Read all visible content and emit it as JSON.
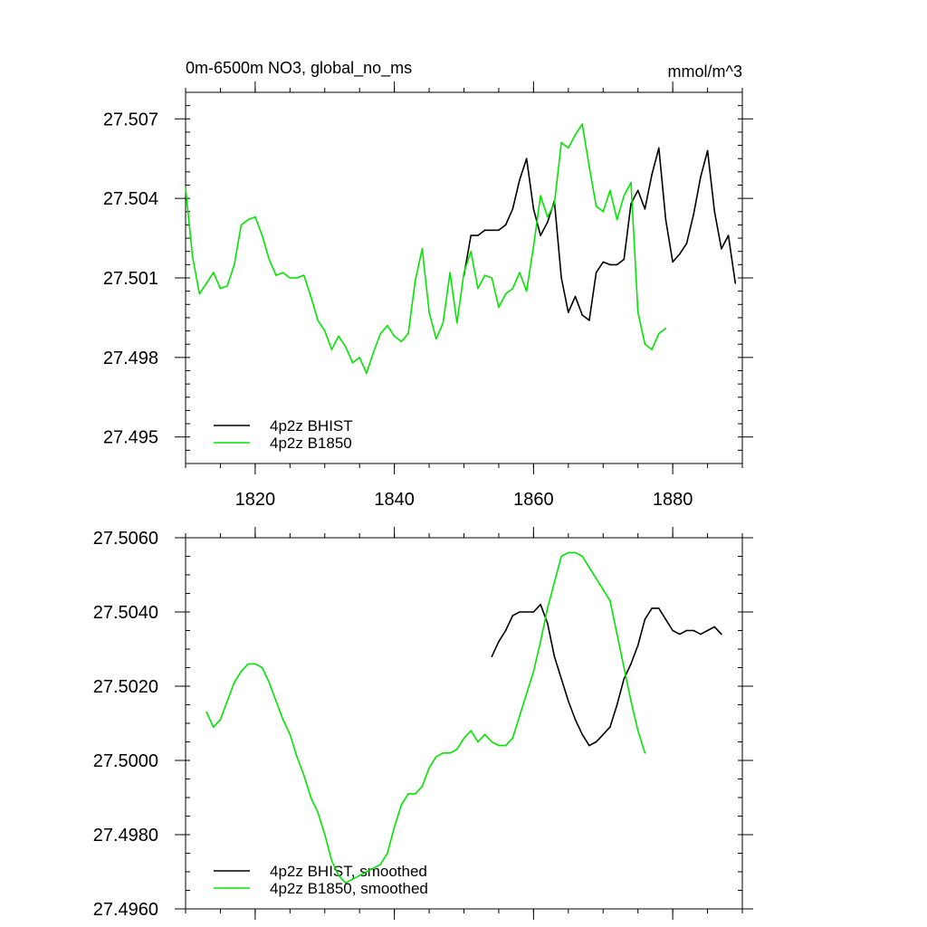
{
  "chart_data": [
    {
      "type": "line",
      "title": "0m-6500m NO3, global_no_ms",
      "units": "mmol/m^3",
      "xlim": [
        1810,
        1890
      ],
      "ylim": [
        27.494,
        27.508
      ],
      "y_tick_values": [
        27.495,
        27.498,
        27.501,
        27.504,
        27.507
      ],
      "y_tick_labels": [
        "27.495",
        "27.498",
        "27.501",
        "27.504",
        "27.507"
      ],
      "x_tick_values": [
        1820,
        1840,
        1860,
        1880
      ],
      "x_tick_labels": [
        "1820",
        "1840",
        "1860",
        "1880"
      ],
      "grid": false,
      "legend_position": "bottom-left",
      "series": [
        {
          "name": "4p2z BHIST",
          "color": "#000000",
          "x": [
            1850,
            1851,
            1852,
            1853,
            1854,
            1855,
            1856,
            1857,
            1858,
            1859,
            1860,
            1861,
            1862,
            1863,
            1864,
            1865,
            1866,
            1867,
            1868,
            1869,
            1870,
            1871,
            1872,
            1873,
            1874,
            1875,
            1876,
            1877,
            1878,
            1879,
            1880,
            1881,
            1882,
            1883,
            1884,
            1885,
            1886,
            1887,
            1888,
            1889
          ],
          "y": [
            27.5011,
            27.5026,
            27.5026,
            27.5028,
            27.5028,
            27.5028,
            27.503,
            27.5036,
            27.5047,
            27.5055,
            27.5036,
            27.5026,
            27.5031,
            27.5039,
            27.501,
            27.4997,
            27.5003,
            27.4996,
            27.4994,
            27.5012,
            27.5016,
            27.5015,
            27.5015,
            27.5017,
            27.5038,
            27.5043,
            27.5036,
            27.5049,
            27.5059,
            27.5032,
            27.5016,
            27.5019,
            27.5023,
            27.5034,
            27.5048,
            27.5058,
            27.5035,
            27.5021,
            27.5026,
            27.5008
          ]
        },
        {
          "name": "4p2z B1850",
          "color": "#00e600",
          "x": [
            1810,
            1811,
            1812,
            1813,
            1814,
            1815,
            1816,
            1817,
            1818,
            1819,
            1820,
            1821,
            1822,
            1823,
            1824,
            1825,
            1826,
            1827,
            1828,
            1829,
            1830,
            1831,
            1832,
            1833,
            1834,
            1835,
            1836,
            1837,
            1838,
            1839,
            1840,
            1841,
            1842,
            1843,
            1844,
            1845,
            1846,
            1847,
            1848,
            1849,
            1850,
            1851,
            1852,
            1853,
            1854,
            1855,
            1856,
            1857,
            1858,
            1859,
            1860,
            1861,
            1862,
            1863,
            1864,
            1865,
            1866,
            1867,
            1868,
            1869,
            1870,
            1871,
            1872,
            1873,
            1874,
            1875,
            1876,
            1877,
            1878,
            1879
          ],
          "y": [
            27.5044,
            27.5018,
            27.5004,
            27.5008,
            27.5012,
            27.5006,
            27.5007,
            27.5015,
            27.503,
            27.5032,
            27.5033,
            27.5026,
            27.5017,
            27.5011,
            27.5012,
            27.501,
            27.501,
            27.5011,
            27.5003,
            27.4994,
            27.499,
            27.4983,
            27.4988,
            27.4984,
            27.4978,
            27.498,
            27.4974,
            27.4982,
            27.4989,
            27.4992,
            27.4988,
            27.4986,
            27.4989,
            27.5009,
            27.5021,
            27.4997,
            27.4987,
            27.4993,
            27.5012,
            27.4993,
            27.5012,
            27.502,
            27.5006,
            27.5011,
            27.501,
            27.4999,
            27.5004,
            27.5006,
            27.5012,
            27.5005,
            27.5022,
            27.5041,
            27.5033,
            27.5038,
            27.5061,
            27.5059,
            27.5064,
            27.5068,
            27.5052,
            27.5037,
            27.5035,
            27.5043,
            27.5032,
            27.5041,
            27.5046,
            27.4997,
            27.4985,
            27.4983,
            27.4989,
            27.4991
          ]
        }
      ]
    },
    {
      "type": "line",
      "title": "",
      "xlim": [
        1810,
        1890
      ],
      "ylim": [
        27.496,
        27.506
      ],
      "y_tick_values": [
        27.496,
        27.498,
        27.5,
        27.502,
        27.504,
        27.506
      ],
      "y_tick_labels": [
        "27.4960",
        "27.4980",
        "27.5000",
        "27.5020",
        "27.5040",
        "27.5060"
      ],
      "x_tick_values": [
        1820,
        1840,
        1860,
        1880
      ],
      "x_tick_labels": [
        "",
        "",
        "",
        ""
      ],
      "grid": false,
      "legend_position": "bottom-left",
      "series": [
        {
          "name": "4p2z BHIST, smoothed",
          "color": "#000000",
          "x": [
            1854,
            1855,
            1856,
            1857,
            1858,
            1859,
            1860,
            1861,
            1862,
            1863,
            1864,
            1865,
            1866,
            1867,
            1868,
            1869,
            1870,
            1871,
            1872,
            1873,
            1874,
            1875,
            1876,
            1877,
            1878,
            1879,
            1880,
            1881,
            1882,
            1883,
            1884,
            1885,
            1886,
            1887
          ],
          "y": [
            27.5028,
            27.5032,
            27.5035,
            27.5039,
            27.504,
            27.504,
            27.504,
            27.5042,
            27.5037,
            27.5028,
            27.5022,
            27.5016,
            27.5011,
            27.5007,
            27.5004,
            27.5005,
            27.5007,
            27.5009,
            27.5015,
            27.5022,
            27.5026,
            27.5031,
            27.5038,
            27.5041,
            27.5041,
            27.5038,
            27.5035,
            27.5034,
            27.5035,
            27.5035,
            27.5034,
            27.5035,
            27.5036,
            27.5034
          ]
        },
        {
          "name": "4p2z B1850, smoothed",
          "color": "#00e600",
          "x": [
            1813,
            1814,
            1815,
            1816,
            1817,
            1818,
            1819,
            1820,
            1821,
            1822,
            1823,
            1824,
            1825,
            1826,
            1827,
            1828,
            1829,
            1830,
            1831,
            1832,
            1833,
            1834,
            1835,
            1836,
            1837,
            1838,
            1839,
            1840,
            1841,
            1842,
            1843,
            1844,
            1845,
            1846,
            1847,
            1848,
            1849,
            1850,
            1851,
            1852,
            1853,
            1854,
            1855,
            1856,
            1857,
            1858,
            1859,
            1860,
            1861,
            1862,
            1863,
            1864,
            1865,
            1866,
            1867,
            1868,
            1869,
            1870,
            1871,
            1872,
            1873,
            1874,
            1875,
            1876
          ],
          "y": [
            27.5013,
            27.5009,
            27.5011,
            27.5016,
            27.5021,
            27.5024,
            27.5026,
            27.5026,
            27.5025,
            27.5021,
            27.5016,
            27.5011,
            27.5007,
            27.5001,
            27.4996,
            27.499,
            27.4986,
            27.498,
            27.4973,
            27.4969,
            27.4967,
            27.4968,
            27.4969,
            27.497,
            27.4971,
            27.4972,
            27.4975,
            27.4982,
            27.4988,
            27.4991,
            27.4991,
            27.4993,
            27.4998,
            27.5001,
            27.5002,
            27.5002,
            27.5003,
            27.5006,
            27.5008,
            27.5005,
            27.5007,
            27.5005,
            27.5004,
            27.5004,
            27.5006,
            27.5012,
            27.5018,
            27.5024,
            27.5032,
            27.5041,
            27.5048,
            27.5055,
            27.5056,
            27.5056,
            27.5055,
            27.5052,
            27.5049,
            27.5046,
            27.5043,
            27.5034,
            27.5025,
            27.5016,
            27.5008,
            27.5002
          ]
        }
      ]
    }
  ]
}
